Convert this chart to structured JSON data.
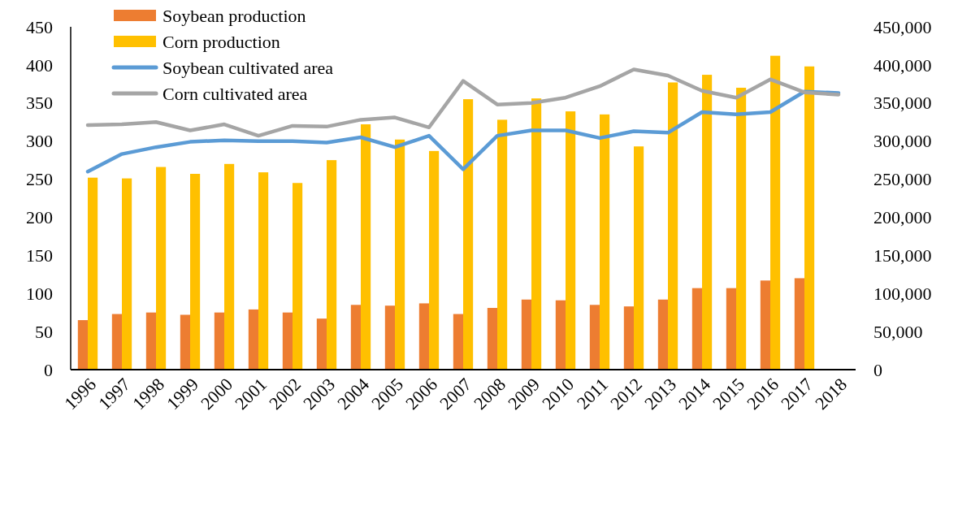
{
  "chart_data": {
    "type": "bar",
    "categories": [
      "1996",
      "1997",
      "1998",
      "1999",
      "2000",
      "2001",
      "2002",
      "2003",
      "2004",
      "2005",
      "2006",
      "2007",
      "2008",
      "2009",
      "2010",
      "2011",
      "2012",
      "2013",
      "2014",
      "2015",
      "2016",
      "2017",
      "2018"
    ],
    "series": [
      {
        "name": "Soybean production",
        "color": "#ed7d31",
        "values": [
          65,
          73,
          75,
          72,
          75,
          79,
          75,
          67,
          85,
          84,
          87,
          73,
          81,
          92,
          91,
          85,
          83,
          92,
          107,
          107,
          117,
          120,
          null
        ]
      },
      {
        "name": "Corn production",
        "color": "#ffc000",
        "values": [
          252,
          251,
          266,
          257,
          270,
          259,
          245,
          275,
          322,
          302,
          287,
          355,
          328,
          356,
          339,
          335,
          293,
          377,
          387,
          370,
          412,
          398,
          null
        ]
      },
      {
        "name": "Soybean cultivated area",
        "type": "line",
        "axis": "y2",
        "color": "#5b9bd5",
        "values": [
          260000,
          283000,
          292000,
          299000,
          301000,
          300000,
          300000,
          298000,
          305000,
          292000,
          307000,
          263000,
          307000,
          314000,
          314000,
          304000,
          313000,
          311000,
          338000,
          335000,
          338000,
          365000,
          363000
        ]
      },
      {
        "name": "Corn cultivated area",
        "type": "line",
        "axis": "y2",
        "color": "#a5a5a5",
        "values": [
          321000,
          322000,
          325000,
          314000,
          322000,
          307000,
          320000,
          319000,
          328000,
          331000,
          318000,
          379000,
          348000,
          350000,
          357000,
          372000,
          394000,
          386000,
          366000,
          357000,
          381000,
          364000,
          361000
        ]
      }
    ],
    "ylim": [
      0,
      450
    ],
    "yticks": [
      0,
      50,
      100,
      150,
      200,
      250,
      300,
      350,
      400,
      450
    ],
    "y2lim": [
      0,
      450000
    ],
    "y2ticks": [
      {
        "value": 0,
        "label": "0"
      },
      {
        "value": 50000,
        "label": "50,000"
      },
      {
        "value": 100000,
        "label": "100,000"
      },
      {
        "value": 150000,
        "label": "150,000"
      },
      {
        "value": 200000,
        "label": "200,000"
      },
      {
        "value": 250000,
        "label": "250,000"
      },
      {
        "value": 300000,
        "label": "300,000"
      },
      {
        "value": 350000,
        "label": "350,000"
      },
      {
        "value": 400000,
        "label": "400,000"
      },
      {
        "value": 450000,
        "label": "450,000"
      }
    ],
    "legend": "top left",
    "grid": false
  }
}
